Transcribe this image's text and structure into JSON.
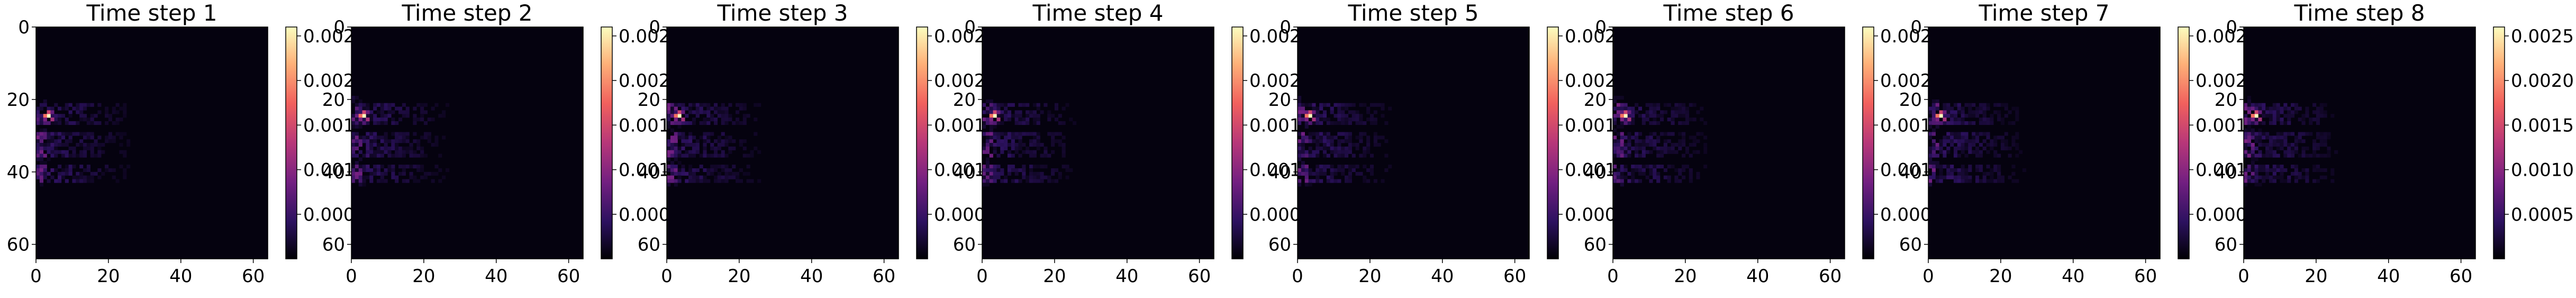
{
  "figure": {
    "layout": "1x8 row of heatmaps with individual colorbars",
    "colormap": "magma",
    "colormap_stops": [
      "#000004",
      "#2c115f",
      "#721f81",
      "#b73779",
      "#f1605d",
      "#feb078",
      "#fcfdbf"
    ],
    "axes_color": "#000000",
    "background": "#ffffff"
  },
  "chart_data": [
    {
      "type": "heatmap",
      "title": "Time step 1",
      "xlim": [
        0,
        64
      ],
      "ylim": [
        64,
        0
      ],
      "xticks": [
        "0",
        "20",
        "40",
        "60"
      ],
      "yticks": [
        "0",
        "20",
        "40",
        "60"
      ],
      "colorbar": {
        "ticks": [
          "0.002",
          "0.002",
          "0.001",
          "0.001",
          "0.000"
        ],
        "ticks_partially_hidden": true,
        "vmin": 0,
        "vmax": 0.0026
      },
      "hotspot": {
        "x": 3,
        "y": 24,
        "value": 0.0026
      },
      "features": "bright hotspot near x≈3,y≈24; dim purple streaks along rows 20–42 extending to x≈30; remaining pixels near zero"
    },
    {
      "type": "heatmap",
      "title": "Time step 2",
      "xlim": [
        0,
        64
      ],
      "ylim": [
        64,
        0
      ],
      "xticks": [
        "0",
        "20",
        "40",
        "60"
      ],
      "yticks": [
        "0",
        "20",
        "40",
        "60"
      ],
      "colorbar": {
        "ticks": [
          "0.002",
          "0.002",
          "0.001",
          "0.001",
          "0.000"
        ],
        "ticks_partially_hidden": true,
        "vmin": 0,
        "vmax": 0.0026
      },
      "hotspot": {
        "x": 3,
        "y": 24,
        "value": 0.0026
      },
      "features": "bright hotspot near x≈3,y≈24; dim purple streaks along rows 20–42 extending to x≈30; remaining pixels near zero"
    },
    {
      "type": "heatmap",
      "title": "Time step 3",
      "xlim": [
        0,
        64
      ],
      "ylim": [
        64,
        0
      ],
      "xticks": [
        "0",
        "20",
        "40",
        "60"
      ],
      "yticks": [
        "0",
        "20",
        "40",
        "60"
      ],
      "colorbar": {
        "ticks": [
          "0.002",
          "0.002",
          "0.001",
          "0.001",
          "0.000"
        ],
        "ticks_partially_hidden": true,
        "vmin": 0,
        "vmax": 0.0026
      },
      "hotspot": {
        "x": 3,
        "y": 24,
        "value": 0.0026
      },
      "features": "bright hotspot near x≈3,y≈24; dim purple streaks along rows 20–42 extending to x≈30; remaining pixels near zero"
    },
    {
      "type": "heatmap",
      "title": "Time step 4",
      "xlim": [
        0,
        64
      ],
      "ylim": [
        64,
        0
      ],
      "xticks": [
        "0",
        "20",
        "40",
        "60"
      ],
      "yticks": [
        "0",
        "20",
        "40",
        "60"
      ],
      "colorbar": {
        "ticks": [
          "0.002",
          "0.002",
          "0.001",
          "0.001",
          "0.000"
        ],
        "ticks_partially_hidden": true,
        "vmin": 0,
        "vmax": 0.0026
      },
      "hotspot": {
        "x": 3,
        "y": 24,
        "value": 0.0026
      },
      "features": "bright hotspot near x≈3,y≈24; dim purple streaks along rows 20–42 extending to x≈30; remaining pixels near zero"
    },
    {
      "type": "heatmap",
      "title": "Time step 5",
      "xlim": [
        0,
        64
      ],
      "ylim": [
        64,
        0
      ],
      "xticks": [
        "0",
        "20",
        "40",
        "60"
      ],
      "yticks": [
        "0",
        "20",
        "40",
        "60"
      ],
      "colorbar": {
        "ticks": [
          "0.002",
          "0.002",
          "0.001",
          "0.001",
          "0.000"
        ],
        "ticks_partially_hidden": true,
        "vmin": 0,
        "vmax": 0.0026
      },
      "hotspot": {
        "x": 3,
        "y": 24,
        "value": 0.0026
      },
      "features": "bright hotspot near x≈3,y≈24; dim purple streaks along rows 20–42 extending to x≈30; remaining pixels near zero"
    },
    {
      "type": "heatmap",
      "title": "Time step 6",
      "xlim": [
        0,
        64
      ],
      "ylim": [
        64,
        0
      ],
      "xticks": [
        "0",
        "20",
        "40",
        "60"
      ],
      "yticks": [
        "0",
        "20",
        "40",
        "60"
      ],
      "colorbar": {
        "ticks": [
          "0.002",
          "0.002",
          "0.001",
          "0.001",
          "0.000"
        ],
        "ticks_partially_hidden": true,
        "vmin": 0,
        "vmax": 0.0026
      },
      "hotspot": {
        "x": 3,
        "y": 24,
        "value": 0.0026
      },
      "features": "bright hotspot near x≈3,y≈24; dim purple streaks along rows 20–42 extending to x≈30; remaining pixels near zero"
    },
    {
      "type": "heatmap",
      "title": "Time step 7",
      "xlim": [
        0,
        64
      ],
      "ylim": [
        64,
        0
      ],
      "xticks": [
        "0",
        "20",
        "40",
        "60"
      ],
      "yticks": [
        "0",
        "20",
        "40",
        "60"
      ],
      "colorbar": {
        "ticks": [
          "0.002",
          "0.002",
          "0.001",
          "0.001",
          "0.000"
        ],
        "ticks_partially_hidden": true,
        "vmin": 0,
        "vmax": 0.0026
      },
      "hotspot": {
        "x": 3,
        "y": 24,
        "value": 0.0026
      },
      "features": "bright hotspot near x≈3,y≈24; dim purple streaks along rows 20–42 extending to x≈30; remaining pixels near zero"
    },
    {
      "type": "heatmap",
      "title": "Time step 8",
      "xlim": [
        0,
        64
      ],
      "ylim": [
        64,
        0
      ],
      "xticks": [
        "0",
        "20",
        "40",
        "60"
      ],
      "yticks": [
        "0",
        "20",
        "40",
        "60"
      ],
      "colorbar": {
        "ticks": [
          "0.0025",
          "0.0020",
          "0.0015",
          "0.0010",
          "0.0005"
        ],
        "tick_values": [
          0.0025,
          0.002,
          0.0015,
          0.001,
          0.0005
        ],
        "ticks_partially_hidden": false,
        "vmin": 0,
        "vmax": 0.0026
      },
      "hotspot": {
        "x": 3,
        "y": 24,
        "value": 0.0026
      },
      "features": "bright hotspot near x≈3,y≈24; dim purple streaks along rows 20–42 extending to x≈30; remaining pixels near zero"
    }
  ]
}
